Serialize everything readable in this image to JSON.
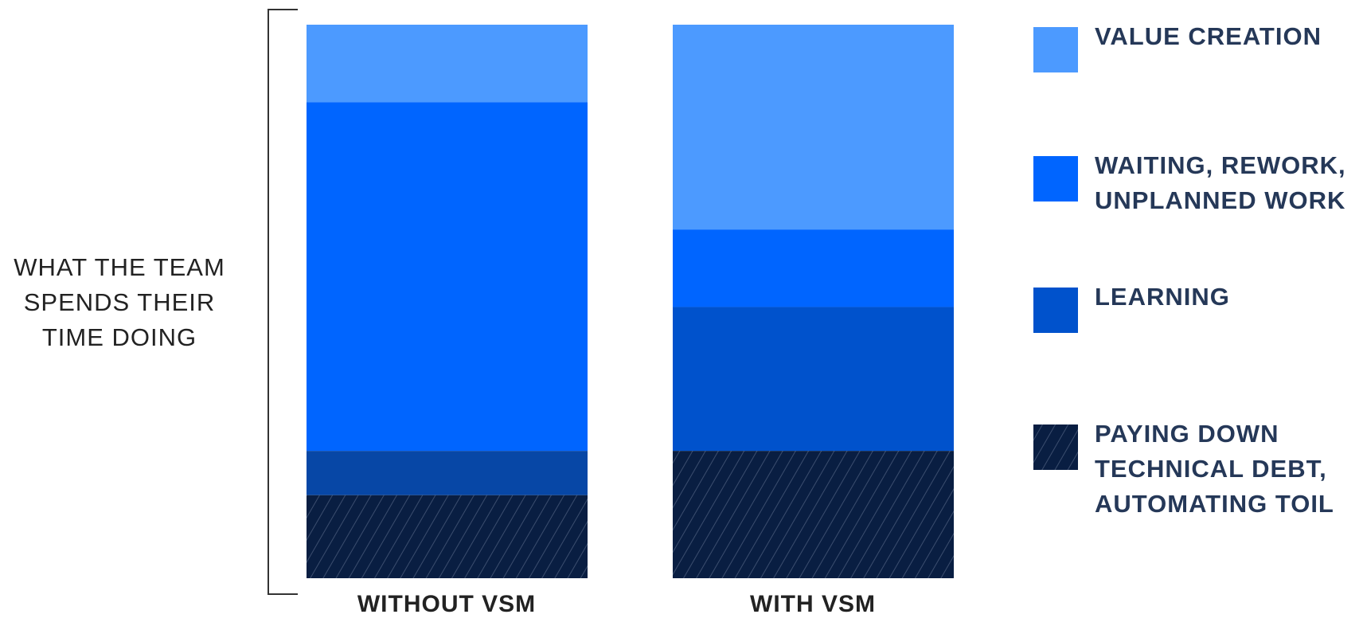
{
  "chart_data": {
    "type": "bar",
    "stacked": true,
    "normalized_percent": true,
    "title": "",
    "ylabel": "WHAT THE TEAM SPENDS THEIR TIME DOING",
    "xlabel": "",
    "categories": [
      "WITHOUT VSM",
      "WITH VSM"
    ],
    "series": [
      {
        "name": "VALUE CREATION",
        "values": [
          14,
          37
        ],
        "color": "#4c9aff"
      },
      {
        "name": "WAITING, REWORK, UNPLANNED WORK",
        "values": [
          63,
          14
        ],
        "color": "#0065ff"
      },
      {
        "name": "LEARNING",
        "values": [
          8,
          26
        ],
        "color": "#0052cc",
        "bar_colors": [
          "#0747a6",
          "#0052cc"
        ]
      },
      {
        "name": "PAYING DOWN TECHNICAL DEBT, AUTOMATING TOIL",
        "values": [
          15,
          23
        ],
        "color": "#091e42",
        "pattern": "diagonal-hatch"
      }
    ],
    "ylim": [
      0,
      100
    ],
    "grid": false,
    "axes_visible": false,
    "legend_position": "right"
  },
  "ylabel_lines": [
    "WHAT THE TEAM",
    "SPENDS THEIR",
    "TIME DOING"
  ],
  "legend": [
    "VALUE CREATION",
    "WAITING, REWORK,\nUNPLANNED WORK",
    "LEARNING",
    "PAYING DOWN\nTECHNICAL DEBT,\nAUTOMATING TOIL"
  ]
}
